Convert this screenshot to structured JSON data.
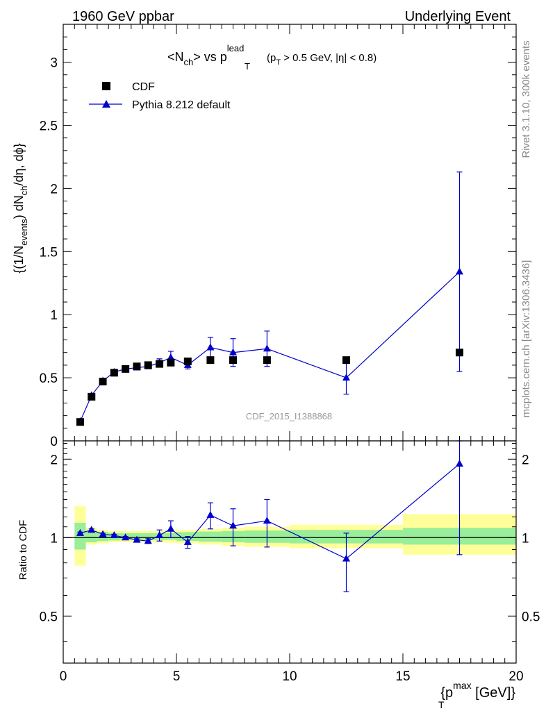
{
  "header": {
    "left": "1960 GeV ppbar",
    "right": "Underlying Event"
  },
  "side_labels": {
    "rivet": "Rivet 3.1.10,  300k events",
    "mcplots": "mcplots.cern.ch [arXiv:1306.3436]"
  },
  "plot_title": {
    "prefix": "<N",
    "ch_sub": "ch",
    "mid": "> vs p",
    "lead_sup": "lead",
    "T_sub": "T",
    "cut_a": "(p",
    "cut_T": "T",
    "cut_b": " > 0.5 GeV, |η| < 0.8)"
  },
  "analysis_id": "CDF_2015_I1388868",
  "ylabel_main": {
    "a": "{(1/N",
    "events_sub": "events",
    "b": ") dN",
    "ch_sub": "ch",
    "c": "/dη, dϕ}"
  },
  "ylabel_ratio": "Ratio to CDF",
  "xlabel": {
    "a": "{p",
    "max_sup": "max",
    "T_sub": "T",
    "b": " [GeV]}"
  },
  "legend": {
    "position": "top-left",
    "entries": [
      {
        "label": "CDF",
        "marker": "square",
        "color": "#000000"
      },
      {
        "label": "Pythia 8.212 default",
        "marker": "triangle",
        "color": "#0000cc"
      }
    ]
  },
  "colors": {
    "mc": "#0000cc",
    "data": "#000000",
    "band_inner": "#99ee99",
    "band_outer": "#ffff99"
  },
  "chart_data": [
    {
      "type": "scatter",
      "panel": "main",
      "xlim": [
        0,
        20
      ],
      "ylim": [
        0,
        3.3
      ],
      "xticks": [
        0,
        5,
        10,
        15,
        20
      ],
      "yticks": [
        0,
        0.5,
        1,
        1.5,
        2,
        2.5,
        3
      ],
      "ytick_labels": [
        "0",
        "0.5",
        "1",
        "1.5",
        "2",
        "2.5",
        "3"
      ],
      "series": [
        {
          "name": "CDF",
          "x": [
            0.75,
            1.25,
            1.75,
            2.25,
            2.75,
            3.25,
            3.75,
            4.25,
            4.75,
            5.5,
            6.5,
            7.5,
            9.0,
            12.5,
            17.5
          ],
          "y": [
            0.15,
            0.35,
            0.47,
            0.54,
            0.57,
            0.59,
            0.6,
            0.61,
            0.62,
            0.63,
            0.64,
            0.64,
            0.64,
            0.64,
            0.7
          ]
        },
        {
          "name": "Pythia 8.212 default",
          "x": [
            0.75,
            1.25,
            1.75,
            2.25,
            2.75,
            3.25,
            3.75,
            4.25,
            4.75,
            5.5,
            6.5,
            7.5,
            9.0,
            12.5,
            17.5
          ],
          "y": [
            0.155,
            0.36,
            0.475,
            0.545,
            0.57,
            0.58,
            0.59,
            0.62,
            0.66,
            0.6,
            0.74,
            0.7,
            0.73,
            0.5,
            1.34
          ],
          "yerr": [
            0.005,
            0.01,
            0.01,
            0.01,
            0.01,
            0.01,
            0.015,
            0.03,
            0.05,
            0.03,
            0.08,
            0.11,
            0.14,
            0.13,
            0.79
          ]
        }
      ]
    },
    {
      "type": "scatter",
      "panel": "ratio",
      "xlim": [
        0,
        20
      ],
      "ylim": [
        0.33,
        2.35
      ],
      "yticks": [
        0.5,
        1,
        2
      ],
      "ytick_labels": [
        "0.5",
        "1",
        "2"
      ],
      "reference_line": 1,
      "bands": {
        "x_edges": [
          0.5,
          1.0,
          1.5,
          2.0,
          2.5,
          3.0,
          3.5,
          4.0,
          4.5,
          5.0,
          6.0,
          7.0,
          8.0,
          10.0,
          15.0,
          20.0
        ],
        "inner": [
          [
            0.9,
            1.14
          ],
          [
            0.96,
            1.06
          ],
          [
            0.97,
            1.05
          ],
          [
            0.975,
            1.04
          ],
          [
            0.98,
            1.04
          ],
          [
            0.98,
            1.04
          ],
          [
            0.98,
            1.04
          ],
          [
            0.98,
            1.04
          ],
          [
            0.98,
            1.04
          ],
          [
            0.97,
            1.05
          ],
          [
            0.965,
            1.055
          ],
          [
            0.96,
            1.06
          ],
          [
            0.955,
            1.065
          ],
          [
            0.95,
            1.07
          ],
          [
            0.94,
            1.09
          ]
        ],
        "outer": [
          [
            0.78,
            1.32
          ],
          [
            0.94,
            1.09
          ],
          [
            0.95,
            1.07
          ],
          [
            0.96,
            1.06
          ],
          [
            0.96,
            1.06
          ],
          [
            0.96,
            1.06
          ],
          [
            0.96,
            1.06
          ],
          [
            0.96,
            1.06
          ],
          [
            0.955,
            1.065
          ],
          [
            0.95,
            1.07
          ],
          [
            0.94,
            1.08
          ],
          [
            0.93,
            1.09
          ],
          [
            0.92,
            1.1
          ],
          [
            0.91,
            1.12
          ],
          [
            0.86,
            1.23
          ]
        ]
      },
      "series": [
        {
          "name": "Pythia 8.212 default",
          "x": [
            0.75,
            1.25,
            1.75,
            2.25,
            2.75,
            3.25,
            3.75,
            4.25,
            4.75,
            5.5,
            6.5,
            7.5,
            9.0,
            12.5,
            17.5
          ],
          "y": [
            1.04,
            1.07,
            1.03,
            1.02,
            1.0,
            0.98,
            0.97,
            1.02,
            1.08,
            0.96,
            1.22,
            1.11,
            1.16,
            0.83,
            1.92
          ],
          "yerr": [
            0.01,
            0.01,
            0.01,
            0.01,
            0.01,
            0.01,
            0.02,
            0.05,
            0.08,
            0.05,
            0.14,
            0.18,
            0.24,
            0.21,
            1.06
          ]
        }
      ]
    }
  ]
}
